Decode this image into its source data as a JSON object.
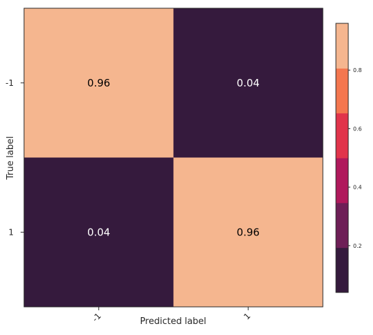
{
  "chart_data": {
    "type": "heatmap",
    "title": "",
    "xlabel": "Predicted label",
    "ylabel": "True label",
    "x_categories": [
      "-1",
      "1"
    ],
    "y_categories": [
      "-1",
      "1"
    ],
    "values": [
      [
        0.96,
        0.04
      ],
      [
        0.04,
        0.96
      ]
    ],
    "cell_labels": [
      [
        "0.96",
        "0.04"
      ],
      [
        "0.04",
        "0.96"
      ]
    ],
    "colorbar": {
      "ticks": [
        "0.2",
        "0.4",
        "0.6",
        "0.8"
      ],
      "range": [
        0.04,
        0.96
      ],
      "levels": 6,
      "colors": [
        "#351a3d",
        "#6e1f57",
        "#b0195c",
        "#e1344b",
        "#f4774f",
        "#f5b68f"
      ]
    },
    "annotation_colors": {
      "on_dark": "#ffffff",
      "on_light": "#000000"
    }
  }
}
